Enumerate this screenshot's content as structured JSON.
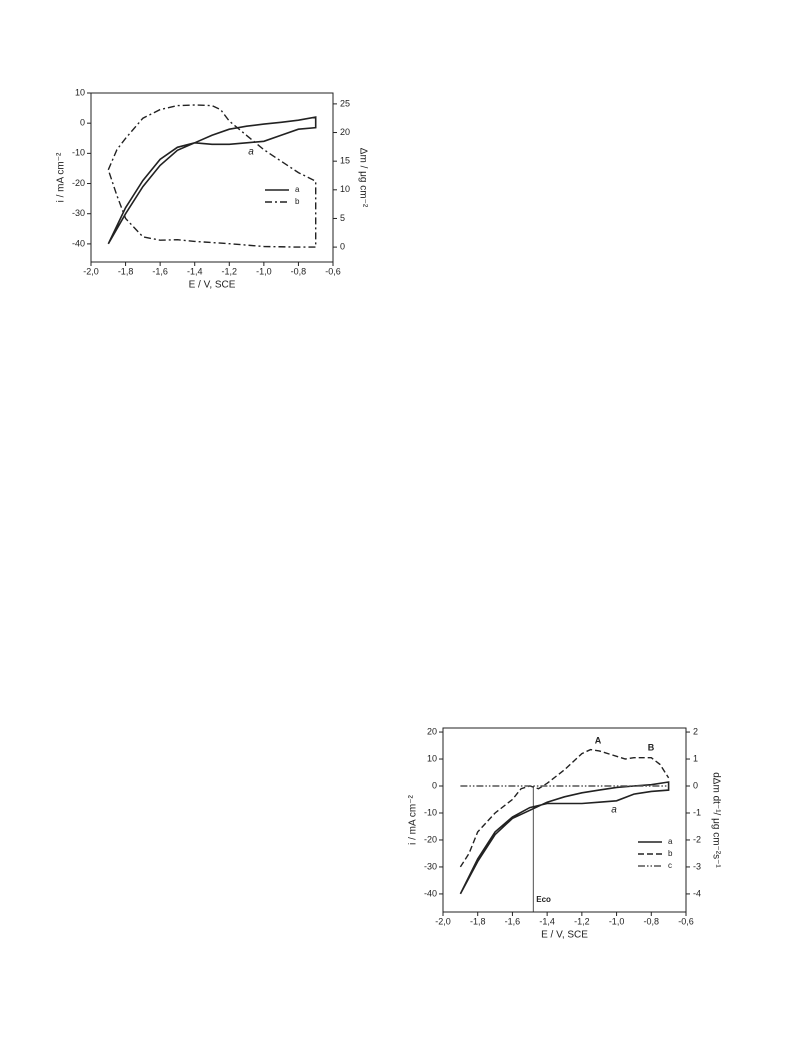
{
  "chart_data": [
    {
      "type": "line",
      "xlabel": "E / V, SCE",
      "ylabel": "i / mA cm⁻²",
      "y2label": "Δm / μg cm⁻²",
      "xlim": [
        -2.0,
        -0.6
      ],
      "xticks": [
        {
          "value": -2.0,
          "label": "-2,0"
        },
        {
          "value": -1.8,
          "label": "-1,8"
        },
        {
          "value": -1.6,
          "label": "-1,6"
        },
        {
          "value": -1.4,
          "label": "-1,4"
        },
        {
          "value": -1.2,
          "label": "-1,2"
        },
        {
          "value": -1.0,
          "label": "-1,0"
        },
        {
          "value": -0.8,
          "label": "-0,8"
        },
        {
          "value": -0.6,
          "label": "-0,6"
        }
      ],
      "ylim": [
        -46,
        10
      ],
      "yticks": [
        10,
        0,
        -10,
        -20,
        -30,
        -40
      ],
      "y2lim": [
        -2.6,
        26.9
      ],
      "y2ticks": [
        25,
        20,
        15,
        10,
        5,
        0
      ],
      "annotations": [
        "a"
      ],
      "series": [
        {
          "name": "a",
          "color": "#222222",
          "line_style": "solid",
          "x": [
            -1.9,
            -1.8,
            -1.7,
            -1.6,
            -1.5,
            -1.4,
            -1.3,
            -1.2,
            -1.1,
            -1.0,
            -0.9,
            -0.8,
            -0.7,
            -0.7,
            -0.8,
            -0.9,
            -1.0,
            -1.1,
            -1.2,
            -1.3,
            -1.4,
            -1.5,
            -1.6,
            -1.7,
            -1.8,
            -1.9
          ],
          "values": [
            -40,
            -30,
            -21,
            -14,
            -9,
            -6.5,
            -4,
            -2,
            -1,
            -0.3,
            0.3,
            1,
            2,
            -1.5,
            -2,
            -4,
            -6,
            -6.5,
            -7,
            -7,
            -6.5,
            -8,
            -12,
            -19,
            -28,
            -40
          ]
        },
        {
          "name": "b",
          "color": "#222222",
          "line_style": "dashdot",
          "axis": "y2",
          "x": [
            -1.9,
            -1.85,
            -1.8,
            -1.7,
            -1.6,
            -1.5,
            -1.4,
            -1.3,
            -1.25,
            -1.2,
            -1.1,
            -1.0,
            -0.9,
            -0.8,
            -0.7,
            -0.7,
            -0.8,
            -1.0,
            -1.2,
            -1.4,
            -1.5,
            -1.6,
            -1.7,
            -1.8,
            -1.85,
            -1.9
          ],
          "values": [
            13.5,
            17,
            19,
            22.5,
            24,
            24.7,
            24.8,
            24.7,
            24,
            22,
            19.5,
            17,
            15,
            13,
            11.5,
            0,
            0,
            0.1,
            0.6,
            1,
            1.3,
            1.2,
            1.8,
            5,
            9,
            13.5
          ]
        }
      ]
    },
    {
      "type": "line",
      "xlabel": "E / V, SCE",
      "ylabel": "i / mA cm⁻²",
      "y2label": "dΔm dt⁻¹/ μg cm⁻²s⁻¹",
      "xlim": [
        -2.0,
        -0.6
      ],
      "xticks": [
        {
          "value": -2.0,
          "label": "-2,0"
        },
        {
          "value": -1.8,
          "label": "-1,8"
        },
        {
          "value": -1.6,
          "label": "-1,6"
        },
        {
          "value": -1.4,
          "label": "-1,4"
        },
        {
          "value": -1.2,
          "label": "-1,2"
        },
        {
          "value": -1.0,
          "label": "-1,0"
        },
        {
          "value": -0.8,
          "label": "-0,8"
        },
        {
          "value": -0.6,
          "label": "-0,6"
        }
      ],
      "ylim": [
        -46.7,
        21.5
      ],
      "yticks": [
        20,
        10,
        0,
        -10,
        -20,
        -30,
        -40
      ],
      "y2lim": [
        -4.67,
        2.15
      ],
      "y2ticks": [
        2,
        1,
        0,
        -1,
        -2,
        -3,
        -4
      ],
      "annotations": [
        "A",
        "B",
        "a"
      ],
      "vlines": [
        {
          "x": -1.48,
          "label": "Eco"
        }
      ],
      "series": [
        {
          "name": "a",
          "color": "#222222",
          "line_style": "solid",
          "x": [
            -1.9,
            -1.8,
            -1.7,
            -1.6,
            -1.5,
            -1.4,
            -1.3,
            -1.2,
            -1.1,
            -1.0,
            -0.9,
            -0.8,
            -0.7,
            -0.7,
            -0.8,
            -0.9,
            -1.0,
            -1.1,
            -1.2,
            -1.3,
            -1.4,
            -1.5,
            -1.6,
            -1.7,
            -1.8,
            -1.9
          ],
          "values": [
            -40,
            -28,
            -18,
            -12,
            -9,
            -6,
            -4,
            -2.5,
            -1.5,
            -0.5,
            0,
            0.5,
            1.5,
            -1.5,
            -2,
            -3,
            -5.5,
            -6,
            -6.5,
            -6.5,
            -6.5,
            -8,
            -11.5,
            -17,
            -27,
            -40
          ]
        },
        {
          "name": "b",
          "color": "#222222",
          "line_style": "dashed",
          "axis": "y2",
          "x": [
            -1.9,
            -1.85,
            -1.8,
            -1.7,
            -1.6,
            -1.55,
            -1.5,
            -1.45,
            -1.4,
            -1.3,
            -1.2,
            -1.15,
            -1.1,
            -1.0,
            -0.95,
            -0.9,
            -0.85,
            -0.8,
            -0.75,
            -0.7
          ],
          "values": [
            -3.0,
            -2.5,
            -1.7,
            -1.0,
            -0.5,
            -0.1,
            0,
            -0.1,
            0.1,
            0.6,
            1.2,
            1.35,
            1.3,
            1.1,
            1.0,
            1.05,
            1.05,
            1.05,
            0.8,
            0.3
          ]
        },
        {
          "name": "c",
          "color": "#555555",
          "line_style": "dashdotdot",
          "axis": "y2",
          "x": [
            -1.9,
            -0.7
          ],
          "values": [
            0,
            0
          ]
        }
      ]
    }
  ]
}
